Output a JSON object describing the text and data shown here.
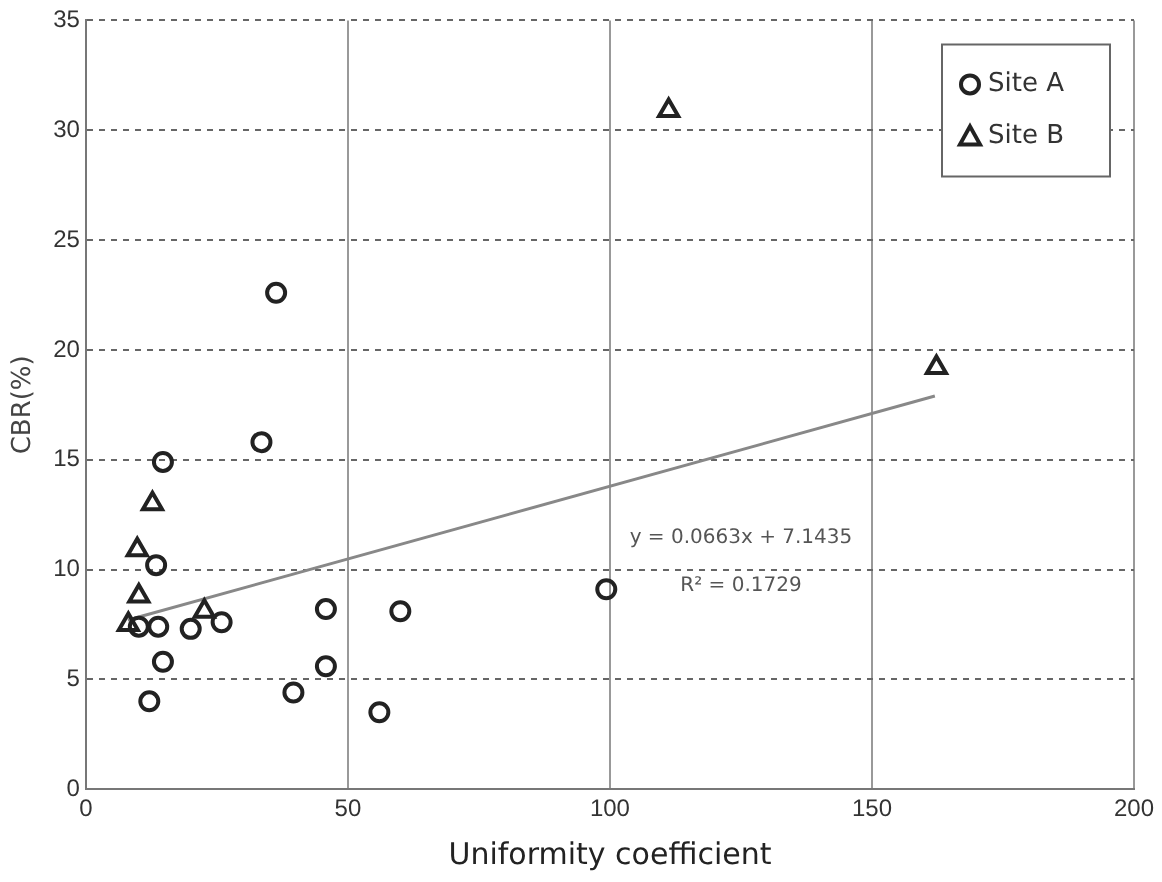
{
  "chart_data": {
    "type": "scatter",
    "xlabel": "Uniformity coefficient",
    "ylabel": "CBR(%)",
    "xlim": [
      0,
      200
    ],
    "xticks": [
      0,
      50,
      100,
      150,
      200
    ],
    "ylim": [
      0,
      35
    ],
    "yticks": [
      0,
      5,
      10,
      15,
      20,
      25,
      30,
      35
    ],
    "grid": true,
    "legend": "top right",
    "series": [
      {
        "name": "Site A",
        "color": "#222222",
        "marker": "circle",
        "x": [
          36.3,
          33.5,
          14.7,
          13.4,
          45.8,
          60,
          13.8,
          10.1,
          20,
          25.9,
          14.7,
          12.1,
          39.6,
          45.8,
          56,
          99.3
        ],
        "values": [
          22.6,
          15.8,
          14.9,
          10.2,
          8.2,
          8.1,
          7.4,
          7.4,
          7.3,
          7.6,
          5.8,
          4.0,
          4.4,
          5.6,
          3.5,
          9.1
        ]
      },
      {
        "name": "Site B",
        "color": "#222222",
        "marker": "triangle",
        "x": [
          12.7,
          9.8,
          10.1,
          8.1,
          22.6,
          111.2,
          162.3
        ],
        "values": [
          13.0,
          10.9,
          8.8,
          7.5,
          8.1,
          30.9,
          19.2
        ]
      },
      {
        "type": "line",
        "color": "#888888",
        "marker": "none",
        "x": [
          8,
          162
        ],
        "values": [
          7.7,
          17.9
        ]
      }
    ],
    "annotations": [
      "y = 0.0663x + 7.1435",
      "R² = 0.1729"
    ]
  }
}
